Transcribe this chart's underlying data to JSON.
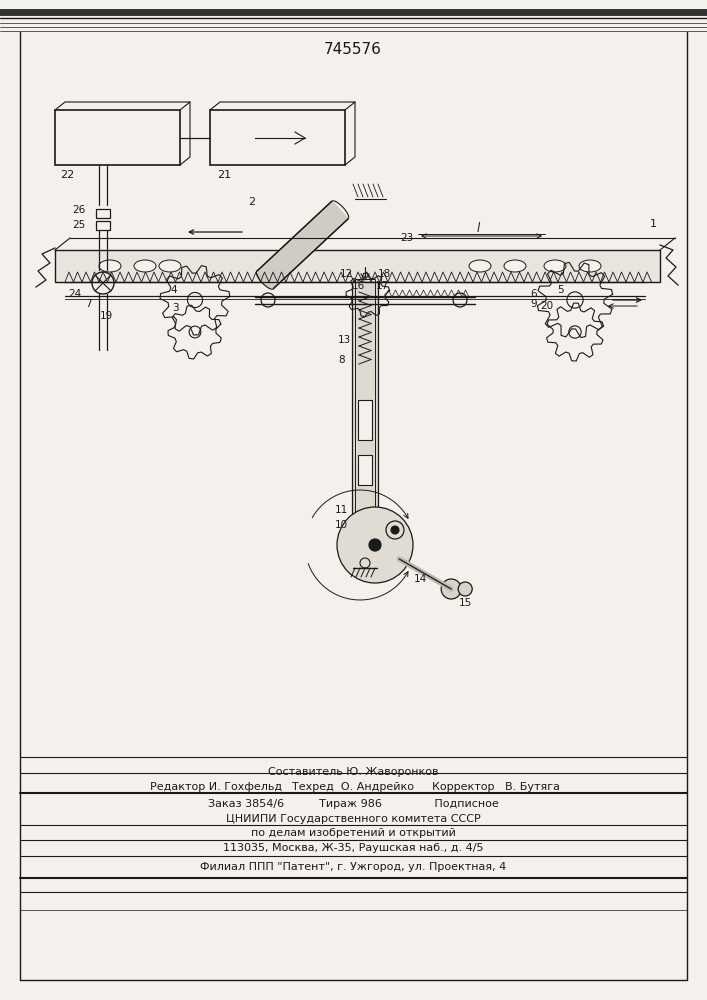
{
  "patent_number": "745576",
  "bg": "#f4f1ec",
  "lc": "#1a1a1a",
  "footer_texts": [
    [
      353,
      228,
      "Составитель Ю. Жаворонков",
      8.0,
      "center"
    ],
    [
      150,
      213,
      "Редактор И. Гохфельд",
      8.0,
      "left"
    ],
    [
      353,
      213,
      "Техред  О. Андрейко",
      8.0,
      "center"
    ],
    [
      560,
      213,
      "Корректор   В. Бутяга",
      8.0,
      "right"
    ],
    [
      353,
      196,
      "Заказ 3854/6          Тираж 986               Подписное",
      8.0,
      "center"
    ],
    [
      353,
      181,
      "ЦНИИПИ Государственного комитета СССР",
      8.0,
      "center"
    ],
    [
      353,
      167,
      "по делам изобретений и открытий",
      8.0,
      "center"
    ],
    [
      353,
      152,
      "113035, Москва, Ж-35, Раушская наб., д. 4/5",
      8.0,
      "center"
    ],
    [
      353,
      133,
      "Филиал ППП \"Патент\", г. Ужгород, ул. Проектная, 4",
      8.0,
      "center"
    ]
  ]
}
